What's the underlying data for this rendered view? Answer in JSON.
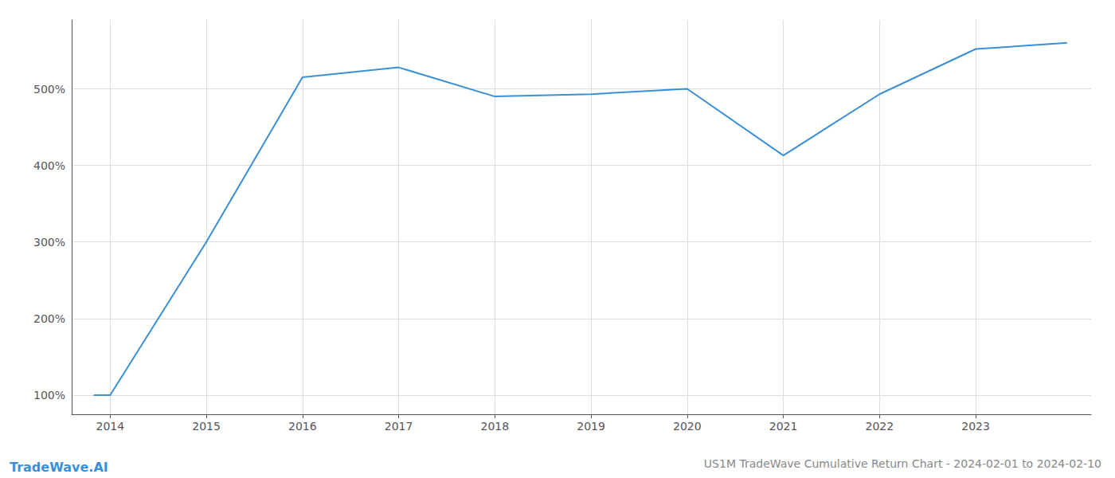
{
  "chart_data": {
    "type": "line",
    "title": "US1M TradeWave Cumulative Return Chart - 2024-02-01 to 2024-02-10",
    "annotations": [
      "TradeWave.AI"
    ],
    "x": [
      2013.83,
      2014.0,
      2015.0,
      2016.0,
      2017.0,
      2018.0,
      2019.0,
      2020.0,
      2021.0,
      2022.0,
      2023.0,
      2023.95
    ],
    "values": [
      100,
      100,
      300,
      515,
      528,
      490,
      493,
      500,
      413,
      493,
      552,
      560
    ],
    "color": "#3b8fd4",
    "xlim": [
      2013.6,
      2024.2
    ],
    "xticks": [
      2014,
      2015,
      2016,
      2017,
      2018,
      2019,
      2020,
      2021,
      2022,
      2023
    ],
    "ylim": [
      75,
      590
    ],
    "yticks": [
      {
        "value": 100,
        "label": "100%"
      },
      {
        "value": 200,
        "label": "200%"
      },
      {
        "value": 300,
        "label": "300%"
      },
      {
        "value": 400,
        "label": "400%"
      },
      {
        "value": 500,
        "label": "500%"
      }
    ],
    "grid": true
  }
}
